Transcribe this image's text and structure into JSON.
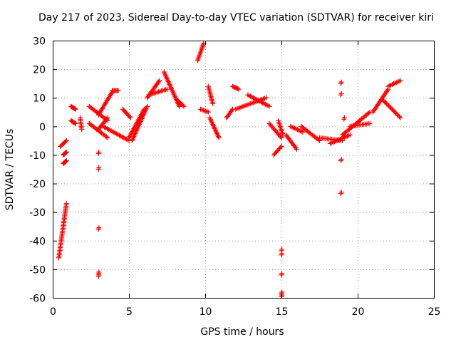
{
  "chart_data": {
    "type": "scatter",
    "title": "Day 217 of 2023, Sidereal Day-to-day VTEC variation (SDTVAR) for receiver kiri",
    "xlabel": "GPS time / hours",
    "ylabel": "SDTVAR / TECUs",
    "xlim": [
      0,
      25
    ],
    "ylim": [
      -60,
      30
    ],
    "xticks": [
      "0",
      "5",
      "10",
      "15",
      "20",
      "25"
    ],
    "yticks": [
      "30",
      "20",
      "10",
      "0",
      "-10",
      "-20",
      "-30",
      "-40",
      "-50",
      "-60"
    ],
    "grid": true,
    "marker": "+",
    "color": "#ff0000",
    "segments": [
      {
        "x0": 0.4,
        "x1": 0.9,
        "y0": -46,
        "y1": -27
      },
      {
        "x0": 0.5,
        "x1": 0.9,
        "y0": -7,
        "y1": -5
      },
      {
        "x0": 0.7,
        "x1": 0.9,
        "y0": -13,
        "y1": -12
      },
      {
        "x0": 0.7,
        "x1": 0.9,
        "y0": -10,
        "y1": -9
      },
      {
        "x0": 1.2,
        "x1": 1.5,
        "y0": 2,
        "y1": 1
      },
      {
        "x0": 1.2,
        "x1": 1.5,
        "y0": 7,
        "y1": 6
      },
      {
        "x0": 1.8,
        "x1": 1.9,
        "y0": 3,
        "y1": -1
      },
      {
        "x0": 2.4,
        "x1": 3.6,
        "y0": 7,
        "y1": 2
      },
      {
        "x0": 2.4,
        "x1": 3.6,
        "y0": 1,
        "y1": -4
      },
      {
        "x0": 3.0,
        "x1": 3.9,
        "y0": 4,
        "y1": 12
      },
      {
        "x0": 3.0,
        "x1": 3.6,
        "y0": -1,
        "y1": 3
      },
      {
        "x0": 3.9,
        "x1": 4.3,
        "y0": 12.5,
        "y1": 12.5
      },
      {
        "x0": 3.3,
        "x1": 5.0,
        "y0": 0,
        "y1": -5
      },
      {
        "x0": 4.6,
        "x1": 5.1,
        "y0": 6,
        "y1": 3
      },
      {
        "x0": 5.0,
        "x1": 6.0,
        "y0": -4,
        "y1": 6
      },
      {
        "x0": 5.2,
        "x1": 6.2,
        "y0": -5,
        "y1": 7
      },
      {
        "x0": 6.2,
        "x1": 7.0,
        "y0": 10,
        "y1": 16
      },
      {
        "x0": 6.3,
        "x1": 7.5,
        "y0": 11,
        "y1": 13
      },
      {
        "x0": 7.3,
        "x1": 8.3,
        "y0": 19,
        "y1": 7
      },
      {
        "x0": 8.2,
        "x1": 8.6,
        "y0": 9,
        "y1": 7
      },
      {
        "x0": 9.5,
        "x1": 9.9,
        "y0": 23,
        "y1": 29
      },
      {
        "x0": 9.7,
        "x1": 10.2,
        "y0": 6,
        "y1": 5
      },
      {
        "x0": 10.2,
        "x1": 10.5,
        "y0": 14,
        "y1": 8
      },
      {
        "x0": 10.3,
        "x1": 10.9,
        "y0": 3,
        "y1": -4
      },
      {
        "x0": 11.4,
        "x1": 11.8,
        "y0": 3,
        "y1": 6
      },
      {
        "x0": 11.8,
        "x1": 12.2,
        "y0": 14,
        "y1": 13
      },
      {
        "x0": 12.0,
        "x1": 14.0,
        "y0": 6,
        "y1": 10
      },
      {
        "x0": 12.8,
        "x1": 14.2,
        "y0": 11,
        "y1": 7
      },
      {
        "x0": 14.2,
        "x1": 15.0,
        "y0": 1,
        "y1": -4
      },
      {
        "x0": 14.8,
        "x1": 15.1,
        "y0": 2,
        "y1": -3
      },
      {
        "x0": 14.5,
        "x1": 15.0,
        "y0": -10,
        "y1": -7
      },
      {
        "x0": 15.3,
        "x1": 16.0,
        "y0": -3,
        "y1": -8
      },
      {
        "x0": 15.6,
        "x1": 16.4,
        "y0": 0,
        "y1": -2
      },
      {
        "x0": 16.3,
        "x1": 17.5,
        "y0": 0,
        "y1": -5
      },
      {
        "x0": 17.5,
        "x1": 19.0,
        "y0": -4,
        "y1": -5
      },
      {
        "x0": 18.2,
        "x1": 19.5,
        "y0": -6,
        "y1": -3
      },
      {
        "x0": 19.0,
        "x1": 20.8,
        "y0": -3,
        "y1": 5
      },
      {
        "x0": 19.5,
        "x1": 20.8,
        "y0": 0,
        "y1": 1
      },
      {
        "x0": 21.0,
        "x1": 22.0,
        "y0": 5,
        "y1": 13
      },
      {
        "x0": 21.7,
        "x1": 22.8,
        "y0": 9,
        "y1": 3
      },
      {
        "x0": 22.0,
        "x1": 22.8,
        "y0": 14,
        "y1": 16
      }
    ],
    "outliers": [
      {
        "x": 3.0,
        "y": -9.5
      },
      {
        "x": 3.0,
        "y": -15
      },
      {
        "x": 3.0,
        "y": -36
      },
      {
        "x": 3.0,
        "y": -51.5
      },
      {
        "x": 3.0,
        "y": -52.5
      },
      {
        "x": 15.0,
        "y": -43.5
      },
      {
        "x": 15.0,
        "y": -45
      },
      {
        "x": 15.0,
        "y": -52
      },
      {
        "x": 15.0,
        "y": -58.5
      },
      {
        "x": 15.0,
        "y": -59.5
      },
      {
        "x": 18.9,
        "y": 15
      },
      {
        "x": 18.9,
        "y": 11
      },
      {
        "x": 18.9,
        "y": -12
      },
      {
        "x": 18.9,
        "y": -23.5
      },
      {
        "x": 19.1,
        "y": 2.5
      }
    ]
  }
}
